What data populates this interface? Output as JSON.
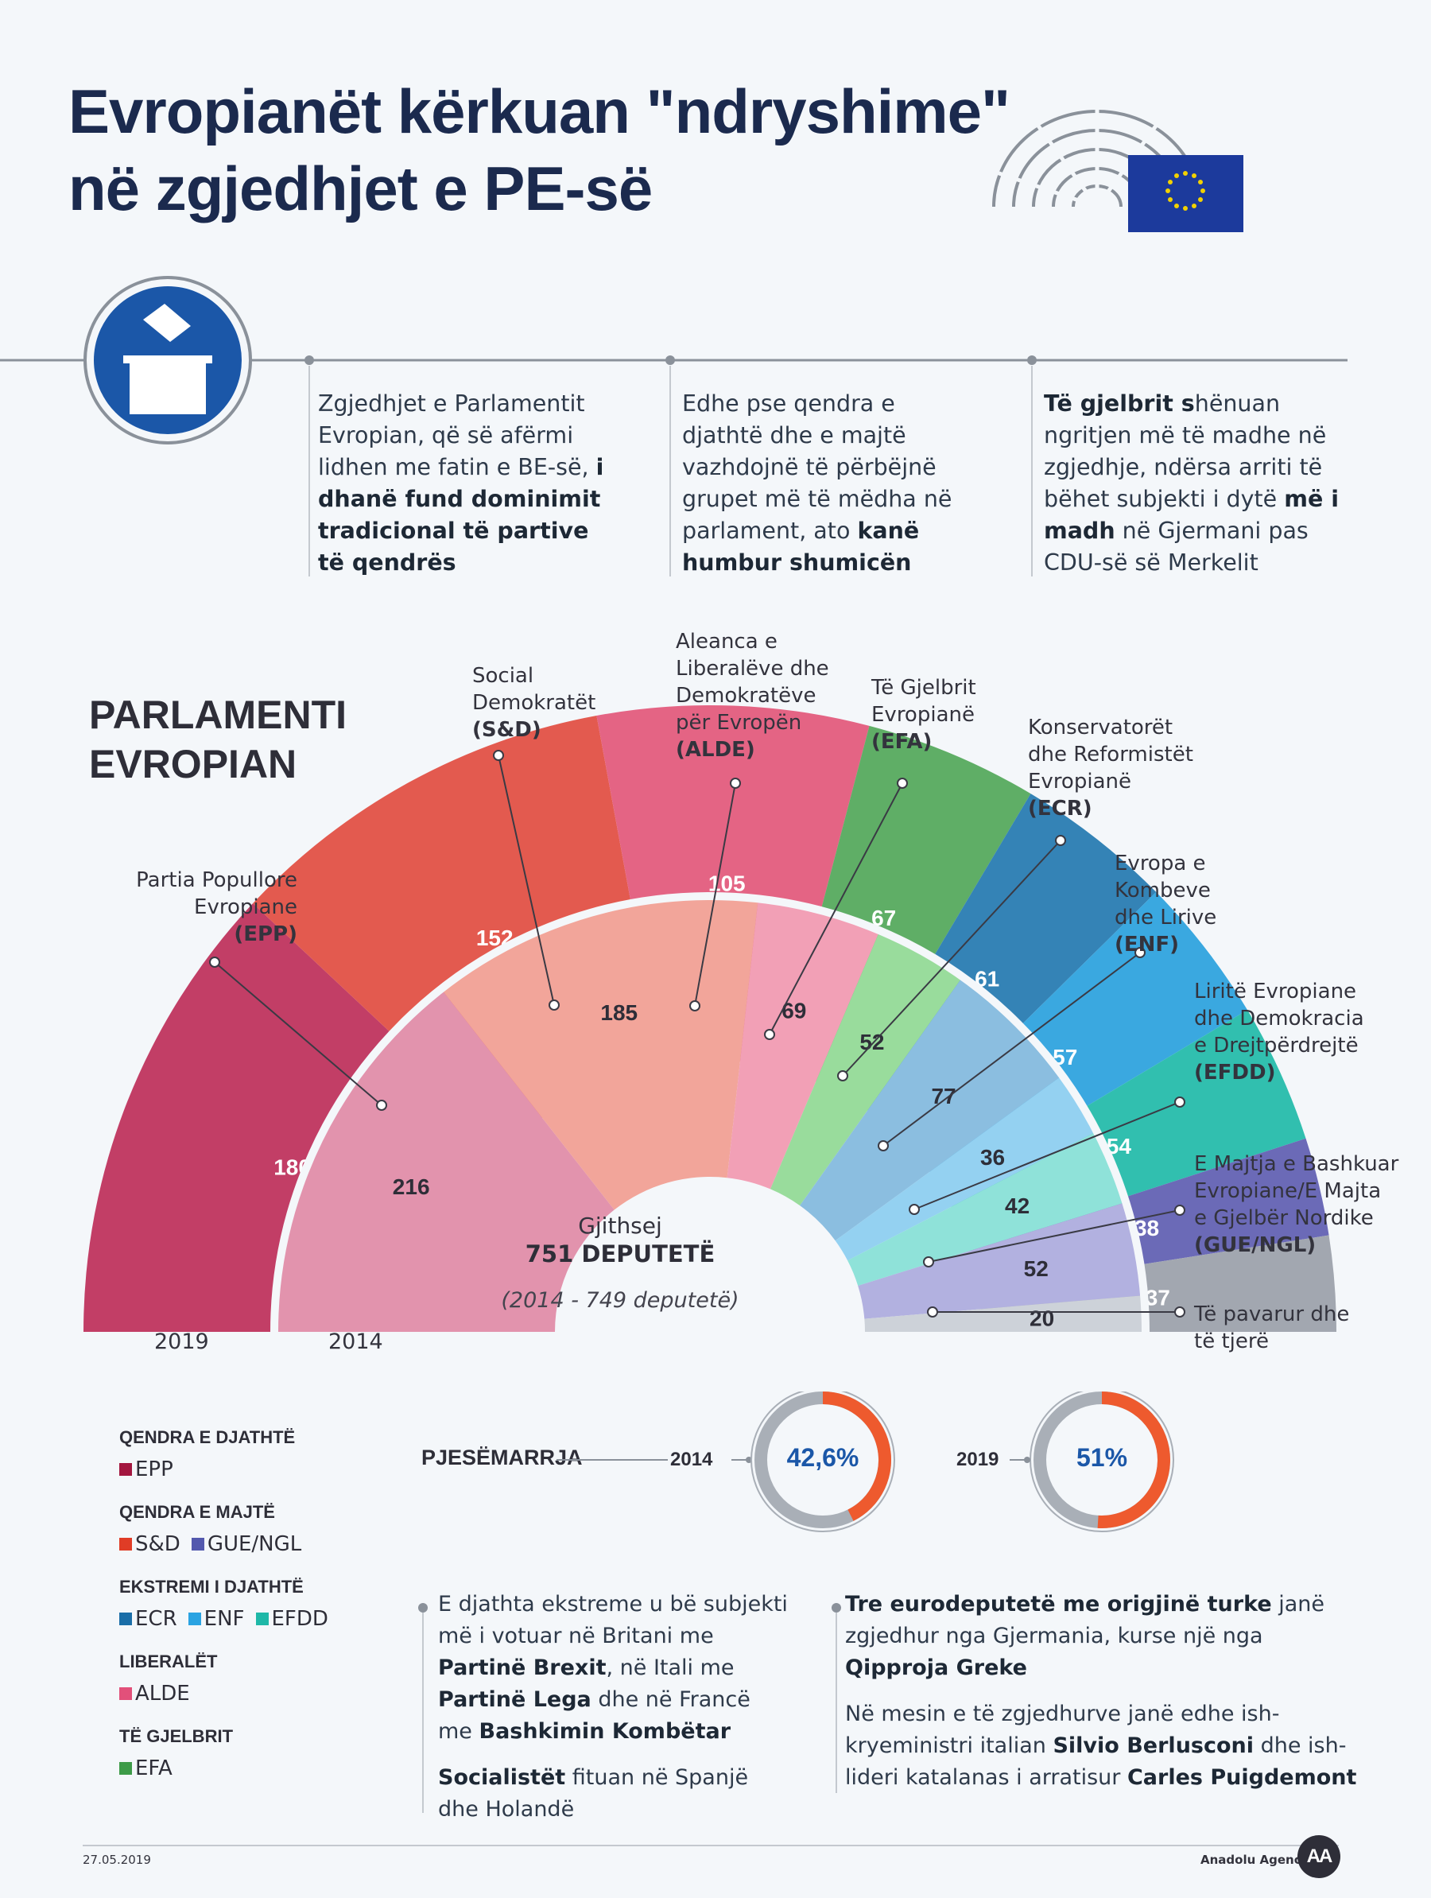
{
  "header": {
    "title_line1": "Evropianët kërkuan \"ndryshime\"",
    "title_line2": "në zgjedhjet e PE-së"
  },
  "intro": [
    {
      "segments": [
        {
          "t": "Zgjedhjet e Parlamentit Evropian, që së afërmi lidhen me fatin e BE-së, ",
          "b": false
        },
        {
          "t": "i dhanë fund dominimit tradicional të partive të qendrës",
          "b": true
        }
      ]
    },
    {
      "segments": [
        {
          "t": "Edhe pse qendra e djathtë dhe e majtë vazhdojnë të përbëjnë grupet më të mëdha në parlament, ato ",
          "b": false
        },
        {
          "t": "kanë humbur shumicën",
          "b": true
        }
      ]
    },
    {
      "segments": [
        {
          "t": "Të gjelbrit s",
          "b": true
        },
        {
          "t": "hënuan ngritjen më të madhe në zgjedhje, ndërsa arriti të bëhet subjekti i dytë ",
          "b": false
        },
        {
          "t": "më i madh",
          "b": true
        },
        {
          "t": " në Gjermani pas CDU-së së Merkelit",
          "b": false
        }
      ]
    }
  ],
  "parliament": {
    "heading_line1": "PARLAMENTI",
    "heading_line2": "EVROPIAN",
    "total_label": "Gjithsej",
    "total_value": "751 DEPUTETË",
    "total_2014": "(2014 - 749 deputetë)",
    "year_outer": "2019",
    "year_inner": "2014"
  },
  "group_labels": [
    {
      "lines": [
        "Partia Popullore",
        "Evropiane"
      ],
      "abbr": "(EPP)"
    },
    {
      "lines": [
        "Social",
        "Demokratët"
      ],
      "abbr": "(S&D)"
    },
    {
      "lines": [
        "Aleanca e",
        "Liberalëve dhe",
        "Demokratëve",
        "për Evropën"
      ],
      "abbr": "(ALDE)"
    },
    {
      "lines": [
        "Të Gjelbrit",
        "Evropianë"
      ],
      "abbr": "(EFA)"
    },
    {
      "lines": [
        "Konservatorët",
        "dhe Reformistët",
        "Evropianë"
      ],
      "abbr": "(ECR)"
    },
    {
      "lines": [
        "Evropa e",
        "Kombeve",
        "dhe Lirive"
      ],
      "abbr": "(ENF)"
    },
    {
      "lines": [
        "Liritë Evropiane",
        "dhe Demokracia",
        "e Drejtpërdrejtë"
      ],
      "abbr": "(EFDD)"
    },
    {
      "lines": [
        "E Majtja e Bashkuar",
        "Evropiane/E Majta",
        "e Gjelbër Nordike"
      ],
      "abbr": "(GUE/NGL)"
    },
    {
      "lines": [
        "Të pavarur dhe",
        "të tjerë"
      ],
      "abbr": ""
    }
  ],
  "chart_data": {
    "type": "parliament-semicircle",
    "categories": [
      "EPP",
      "S&D",
      "ALDE",
      "EFA",
      "ECR",
      "ENF",
      "EFDD",
      "GUE/NGL",
      "Të pavarur dhe të tjerë"
    ],
    "series": [
      {
        "name": "2019",
        "values": [
          180,
          152,
          105,
          67,
          61,
          57,
          54,
          38,
          37
        ]
      },
      {
        "name": "2014",
        "values": [
          216,
          185,
          69,
          52,
          77,
          36,
          42,
          52,
          20
        ]
      }
    ],
    "colors_2019": [
      "#c23e66",
      "#e35a4f",
      "#e46484",
      "#5fae66",
      "#3483b6",
      "#3aa8e0",
      "#31bfaf",
      "#6b6ab7",
      "#a2a7b0"
    ],
    "colors_2014": [
      "#e293ad",
      "#f2a59a",
      "#f2a0b6",
      "#99dc9c",
      "#8bbee0",
      "#94d1f1",
      "#8fe2d9",
      "#b2b1e0",
      "#cdd2d9"
    ],
    "totals": {
      "2019": 751,
      "2014": 749
    }
  },
  "legend": {
    "groups": [
      {
        "heading": "QENDRA E DJATHTË",
        "items": [
          {
            "label": "EPP",
            "color": "#a3163f"
          }
        ]
      },
      {
        "heading": "QENDRA E MAJTË",
        "items": [
          {
            "label": "S&D",
            "color": "#e03c26"
          },
          {
            "label": "GUE/NGL",
            "color": "#5359ae"
          }
        ]
      },
      {
        "heading": "EKSTREMI I DJATHTË",
        "items": [
          {
            "label": "ECR",
            "color": "#1a6ea8"
          },
          {
            "label": "ENF",
            "color": "#2aa3e2"
          },
          {
            "label": "EFDD",
            "color": "#1fb8a8"
          }
        ]
      },
      {
        "heading": "LIBERALËT",
        "items": [
          {
            "label": "ALDE",
            "color": "#e2507a"
          }
        ]
      },
      {
        "heading": "TË GJELBRIT",
        "items": [
          {
            "label": "EFA",
            "color": "#3d9b48"
          }
        ]
      }
    ]
  },
  "turnout": {
    "label": "PJESËMARRJA",
    "year_2014": "2014",
    "value_2014": "42,6%",
    "fraction_2014": 0.426,
    "year_2019": "2019",
    "value_2019": "51%",
    "fraction_2019": 0.51
  },
  "notes_left": [
    {
      "segments": [
        {
          "t": "E djathta ekstreme u bë subjekti më i votuar në Britani me ",
          "b": false
        },
        {
          "t": "Partinë Brexit",
          "b": true
        },
        {
          "t": ", në Itali me ",
          "b": false
        },
        {
          "t": "Partinë Lega",
          "b": true
        },
        {
          "t": " dhe në Francë me ",
          "b": false
        },
        {
          "t": "Bashkimin Kombëtar",
          "b": true
        }
      ]
    },
    {
      "segments": [
        {
          "t": "Socialistët",
          "b": true
        },
        {
          "t": " fituan në Spanjë dhe Holandë",
          "b": false
        }
      ]
    }
  ],
  "notes_right": [
    {
      "segments": [
        {
          "t": "Tre eurodeputetë me origjinë turke",
          "b": true
        },
        {
          "t": " janë zgjedhur nga Gjermania, kurse një nga ",
          "b": false
        },
        {
          "t": "Qipproja Greke",
          "b": true
        }
      ]
    },
    {
      "segments": [
        {
          "t": "Në mesin e të zgjedhurve janë edhe ish-kryeministri italian ",
          "b": false
        },
        {
          "t": "Silvio Berlusconi",
          "b": true
        },
        {
          "t": " dhe ish-lideri katalanas i arratisur ",
          "b": false
        },
        {
          "t": "Carles Puigdemont",
          "b": true
        }
      ]
    }
  ],
  "footer": {
    "date": "27.05.2019",
    "agency": "Anadolu Agency",
    "logo_text": "AA"
  }
}
